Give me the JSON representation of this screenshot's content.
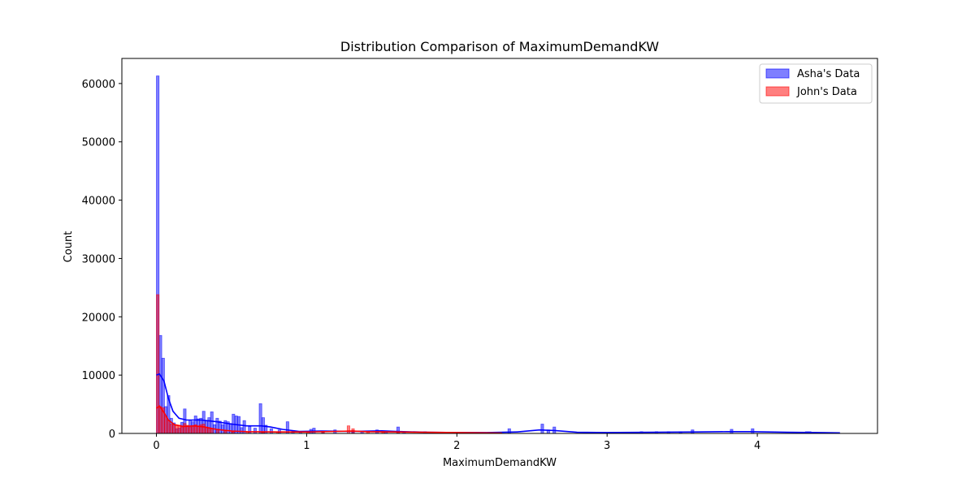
{
  "chart_data": {
    "type": "histogram",
    "title": "Distribution Comparison of MaximumDemandKW",
    "xlabel": "MaximumDemandKW",
    "ylabel": "Count",
    "xlim": [
      -0.23,
      4.8
    ],
    "ylim": [
      0,
      64300
    ],
    "x_ticks": [
      0,
      1,
      2,
      3,
      4
    ],
    "y_ticks": [
      0,
      10000,
      20000,
      30000,
      40000,
      50000,
      60000
    ],
    "grid": false,
    "legend_position": "top-right",
    "bin_width": 0.0175,
    "series": [
      {
        "name": "Asha's Data",
        "color": "#0000ff",
        "bars": [
          [
            0.0,
            61300
          ],
          [
            0.018,
            16800
          ],
          [
            0.036,
            12900
          ],
          [
            0.054,
            4600
          ],
          [
            0.072,
            6500
          ],
          [
            0.09,
            2600
          ],
          [
            0.108,
            1800
          ],
          [
            0.126,
            800
          ],
          [
            0.144,
            900
          ],
          [
            0.162,
            1900
          ],
          [
            0.18,
            4200
          ],
          [
            0.198,
            1200
          ],
          [
            0.216,
            2300
          ],
          [
            0.234,
            2000
          ],
          [
            0.252,
            3000
          ],
          [
            0.27,
            2500
          ],
          [
            0.288,
            2600
          ],
          [
            0.306,
            3800
          ],
          [
            0.324,
            2200
          ],
          [
            0.342,
            2700
          ],
          [
            0.36,
            3700
          ],
          [
            0.378,
            1500
          ],
          [
            0.396,
            2600
          ],
          [
            0.414,
            2100
          ],
          [
            0.432,
            1500
          ],
          [
            0.45,
            2200
          ],
          [
            0.468,
            2000
          ],
          [
            0.486,
            1700
          ],
          [
            0.504,
            3300
          ],
          [
            0.522,
            3000
          ],
          [
            0.54,
            2900
          ],
          [
            0.558,
            1000
          ],
          [
            0.576,
            2200
          ],
          [
            0.612,
            1200
          ],
          [
            0.648,
            900
          ],
          [
            0.684,
            5100
          ],
          [
            0.702,
            2700
          ],
          [
            0.72,
            1400
          ],
          [
            0.756,
            800
          ],
          [
            0.81,
            600
          ],
          [
            0.864,
            2000
          ],
          [
            0.9,
            400
          ],
          [
            0.95,
            300
          ],
          [
            1.02,
            700
          ],
          [
            1.04,
            900
          ],
          [
            1.1,
            400
          ],
          [
            1.18,
            600
          ],
          [
            1.3,
            500
          ],
          [
            1.36,
            300
          ],
          [
            1.46,
            600
          ],
          [
            1.52,
            400
          ],
          [
            1.6,
            1100
          ],
          [
            1.64,
            300
          ],
          [
            1.78,
            300
          ],
          [
            2.34,
            800
          ],
          [
            2.56,
            1600
          ],
          [
            2.6,
            600
          ],
          [
            2.64,
            1100
          ],
          [
            3.22,
            300
          ],
          [
            3.32,
            300
          ],
          [
            3.4,
            300
          ],
          [
            3.48,
            300
          ],
          [
            3.56,
            600
          ],
          [
            3.82,
            700
          ],
          [
            3.96,
            800
          ],
          [
            4.32,
            300
          ],
          [
            4.34,
            300
          ]
        ],
        "kde": [
          [
            0.0,
            10000
          ],
          [
            0.02,
            10200
          ],
          [
            0.05,
            9000
          ],
          [
            0.08,
            6000
          ],
          [
            0.11,
            3800
          ],
          [
            0.15,
            2600
          ],
          [
            0.2,
            2300
          ],
          [
            0.3,
            2300
          ],
          [
            0.4,
            2000
          ],
          [
            0.5,
            1600
          ],
          [
            0.6,
            1300
          ],
          [
            0.7,
            1300
          ],
          [
            0.76,
            1100
          ],
          [
            0.84,
            700
          ],
          [
            0.95,
            350
          ],
          [
            1.1,
            400
          ],
          [
            1.3,
            350
          ],
          [
            1.5,
            450
          ],
          [
            1.6,
            350
          ],
          [
            1.8,
            200
          ],
          [
            2.0,
            150
          ],
          [
            2.2,
            150
          ],
          [
            2.4,
            250
          ],
          [
            2.55,
            600
          ],
          [
            2.65,
            500
          ],
          [
            2.8,
            200
          ],
          [
            3.0,
            150
          ],
          [
            3.3,
            200
          ],
          [
            3.6,
            250
          ],
          [
            3.8,
            300
          ],
          [
            3.95,
            300
          ],
          [
            4.2,
            200
          ],
          [
            4.4,
            150
          ],
          [
            4.55,
            100
          ]
        ]
      },
      {
        "name": "John's Data",
        "color": "#ff0000",
        "bars": [
          [
            0.0,
            23800
          ],
          [
            0.018,
            4600
          ],
          [
            0.036,
            4400
          ],
          [
            0.054,
            2900
          ],
          [
            0.072,
            2200
          ],
          [
            0.09,
            1600
          ],
          [
            0.108,
            1500
          ],
          [
            0.126,
            1400
          ],
          [
            0.144,
            1400
          ],
          [
            0.162,
            1100
          ],
          [
            0.18,
            1700
          ],
          [
            0.198,
            1400
          ],
          [
            0.216,
            1100
          ],
          [
            0.234,
            1300
          ],
          [
            0.252,
            1500
          ],
          [
            0.27,
            1300
          ],
          [
            0.288,
            1500
          ],
          [
            0.306,
            1600
          ],
          [
            0.324,
            1100
          ],
          [
            0.342,
            1000
          ],
          [
            0.36,
            800
          ],
          [
            0.4,
            600
          ],
          [
            0.45,
            400
          ],
          [
            0.5,
            300
          ],
          [
            0.6,
            300
          ],
          [
            0.7,
            200
          ],
          [
            0.8,
            200
          ],
          [
            1.0,
            200
          ],
          [
            1.1,
            300
          ],
          [
            1.27,
            1300
          ],
          [
            1.3,
            800
          ],
          [
            1.4,
            300
          ],
          [
            1.5,
            200
          ],
          [
            1.6,
            300
          ],
          [
            1.8,
            200
          ],
          [
            1.9,
            200
          ],
          [
            2.0,
            200
          ],
          [
            2.1,
            150
          ]
        ],
        "kde": [
          [
            0.0,
            4300
          ],
          [
            0.02,
            4700
          ],
          [
            0.05,
            3600
          ],
          [
            0.08,
            2300
          ],
          [
            0.12,
            1500
          ],
          [
            0.18,
            1200
          ],
          [
            0.25,
            1300
          ],
          [
            0.32,
            1100
          ],
          [
            0.4,
            700
          ],
          [
            0.5,
            400
          ],
          [
            0.6,
            300
          ],
          [
            0.8,
            250
          ],
          [
            1.0,
            250
          ],
          [
            1.2,
            350
          ],
          [
            1.3,
            400
          ],
          [
            1.4,
            300
          ],
          [
            1.6,
            250
          ],
          [
            1.8,
            200
          ],
          [
            2.0,
            150
          ],
          [
            2.2,
            100
          ],
          [
            2.3,
            50
          ]
        ]
      }
    ]
  }
}
